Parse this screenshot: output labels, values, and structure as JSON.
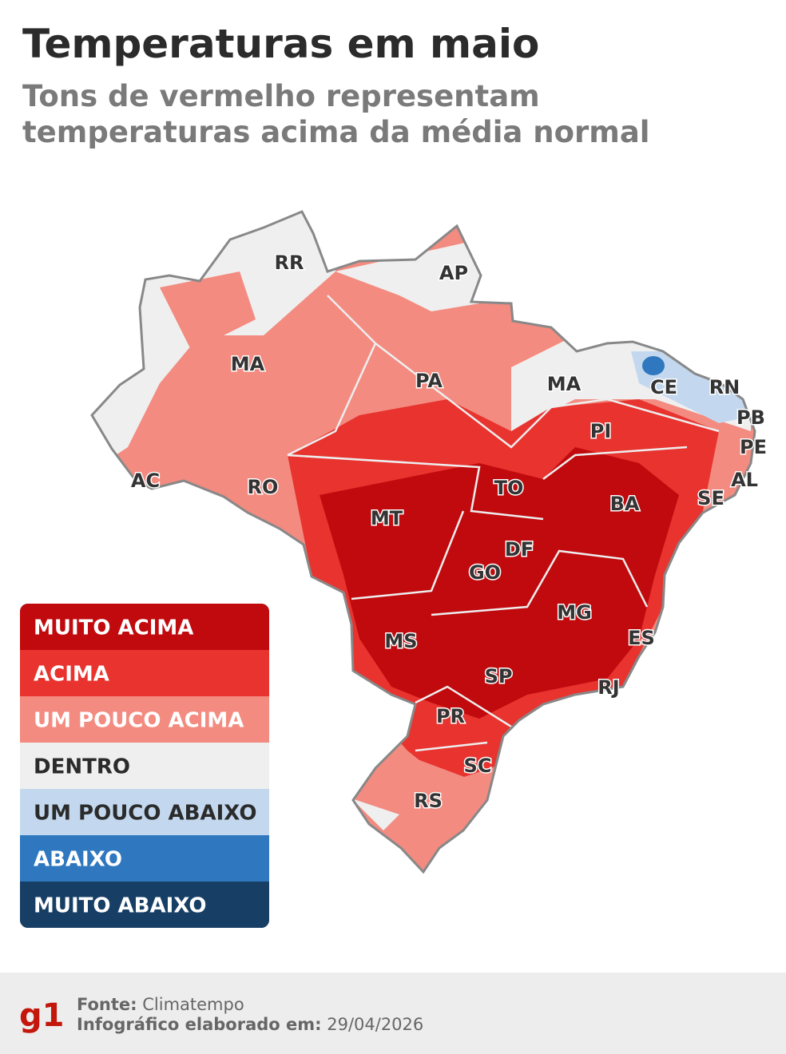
{
  "header": {
    "title": "Temperaturas em maio",
    "subtitle": [
      "Tons de vermelho representam",
      "temperaturas acima da média normal"
    ]
  },
  "map": {
    "labels": [
      "RR",
      "AP",
      "MA",
      "PA",
      "MA",
      "CE",
      "RN",
      "PB",
      "PE",
      "AL",
      "SE",
      "PI",
      "BA",
      "TO",
      "AC",
      "RO",
      "MT",
      "DF",
      "GO",
      "MG",
      "ES",
      "RJ",
      "MS",
      "SP",
      "PR",
      "SC",
      "RS"
    ]
  },
  "legend": {
    "items": [
      {
        "label": "MUITO ACIMA",
        "color": "#c10a0e"
      },
      {
        "label": "ACIMA",
        "color": "#e8332f"
      },
      {
        "label": "UM POUCO ACIMA",
        "color": "#f38b80"
      },
      {
        "label": "DENTRO",
        "color": "#efefef"
      },
      {
        "label": "UM POUCO ABAIXO",
        "color": "#c3d8ef"
      },
      {
        "label": "ABAIXO",
        "color": "#2f78bf"
      },
      {
        "label": "MUITO ABAIXO",
        "color": "#173f66"
      }
    ]
  },
  "footer": {
    "logo": "g1",
    "source_label": "Fonte:",
    "source": "Climatempo",
    "date_label": "Infográfico elaborado em:",
    "date": "29/04/2026"
  }
}
